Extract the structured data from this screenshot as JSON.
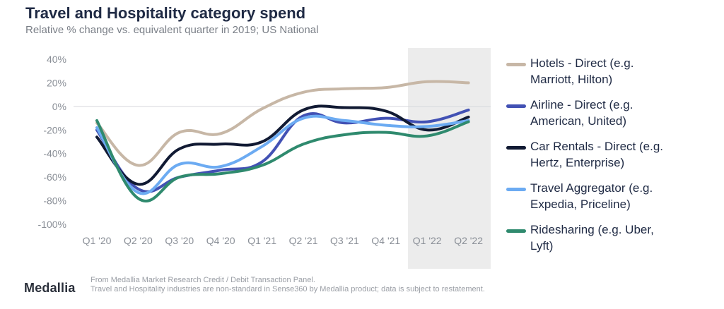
{
  "header": {
    "title": "Travel and Hospitality category spend",
    "subtitle": "Relative % change vs. equivalent quarter in 2019; US National"
  },
  "chart_data": {
    "type": "line",
    "categories": [
      "Q1 '20",
      "Q2 '20",
      "Q3 '20",
      "Q4 '20",
      "Q1 '21",
      "Q2 '21",
      "Q3 '21",
      "Q4 '21",
      "Q1 '22",
      "Q2 '22"
    ],
    "y_ticks": [
      "40%",
      "20%",
      "0%",
      "-20%",
      "-40%",
      "-60%",
      "-80%",
      "-100%"
    ],
    "ylim": [
      -100,
      40
    ],
    "highlight": {
      "from_category": "Q1 '22",
      "to_category": "Q2 '22",
      "color": "#ececec"
    },
    "zero_line": true,
    "legend_position": "right",
    "series": [
      {
        "name": "Hotels - Direct (e.g. Marriott, Hilton)",
        "color": "#c7b7a6",
        "values": [
          -14,
          -50,
          -22,
          -23,
          -2,
          12,
          15,
          16,
          21,
          20
        ]
      },
      {
        "name": "Airline - Direct (e.g. American, United)",
        "color": "#4251b4",
        "values": [
          -20,
          -70,
          -60,
          -54,
          -47,
          -8,
          -14,
          -10,
          -13,
          -3
        ]
      },
      {
        "name": "Car Rentals - Direct (e.g. Hertz, Enterprise)",
        "color": "#111a33",
        "values": [
          -26,
          -66,
          -36,
          -32,
          -30,
          -3,
          -1,
          -4,
          -20,
          -9
        ]
      },
      {
        "name": "Travel Aggregator (e.g. Expedia, Priceline)",
        "color": "#6cabf2",
        "values": [
          -18,
          -73,
          -49,
          -51,
          -34,
          -10,
          -12,
          -16,
          -17,
          -12
        ]
      },
      {
        "name": "Ridesharing (e.g. Uber, Lyft)",
        "color": "#2f8a6e",
        "values": [
          -12,
          -78,
          -60,
          -57,
          -50,
          -32,
          -24,
          -22,
          -25,
          -13
        ]
      }
    ]
  },
  "footer": {
    "logo": "Medallia",
    "source_line_1": "From Medallia Market Research Credit / Debit Transaction Panel.",
    "source_line_2": "Travel and Hospitality industries are non-standard in Sense360 by Medallia product; data is subject to restatement."
  }
}
